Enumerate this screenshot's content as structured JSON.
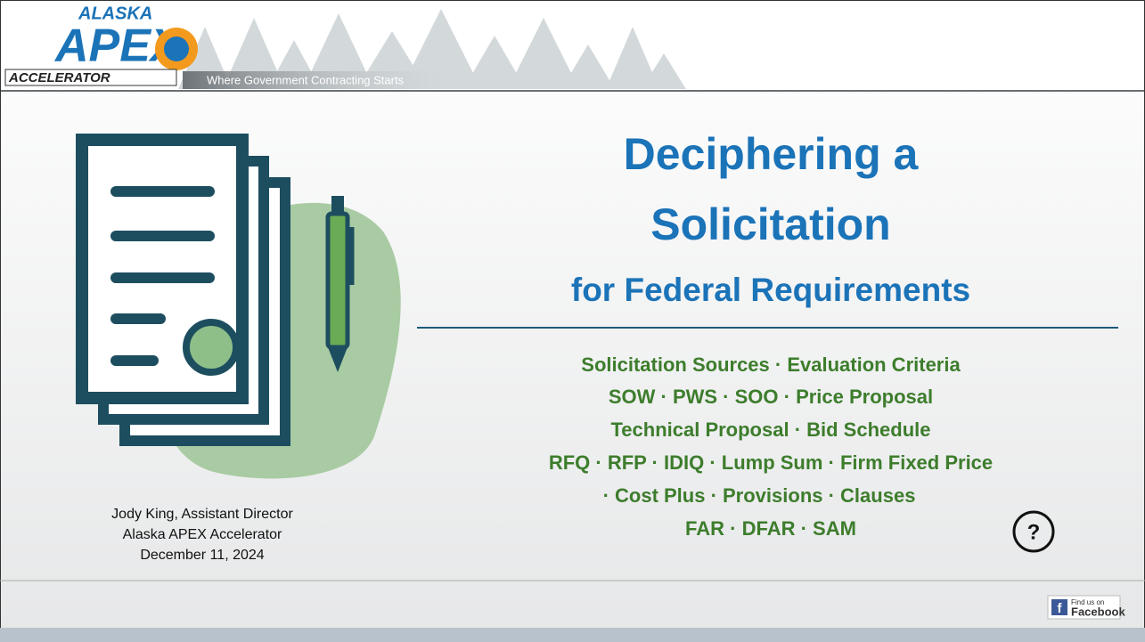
{
  "header": {
    "logo": {
      "top": "ALASKA",
      "main": "APEX",
      "bottom": "ACCELERATOR"
    },
    "tagline": "Where Government Contracting Starts"
  },
  "title": {
    "lines": [
      "Deciphering a",
      "Solicitation",
      "for Federal Requirements"
    ]
  },
  "topics": [
    "Solicitation Sources · Evaluation Criteria",
    "SOW · PWS · SOO · Price Proposal",
    "Technical Proposal · Bid Schedule",
    "RFQ · RFP · IDIQ · Lump Sum · Firm Fixed Price",
    "· Cost Plus · Provisions · Clauses",
    "FAR · DFAR · SAM"
  ],
  "presenter": [
    "Jody King, Assistant Director",
    "Alaska APEX Accelerator",
    "December 11, 2024"
  ],
  "footer": {
    "facebook": {
      "icon": "f",
      "small": "Find us on",
      "large": "Facebook"
    }
  }
}
